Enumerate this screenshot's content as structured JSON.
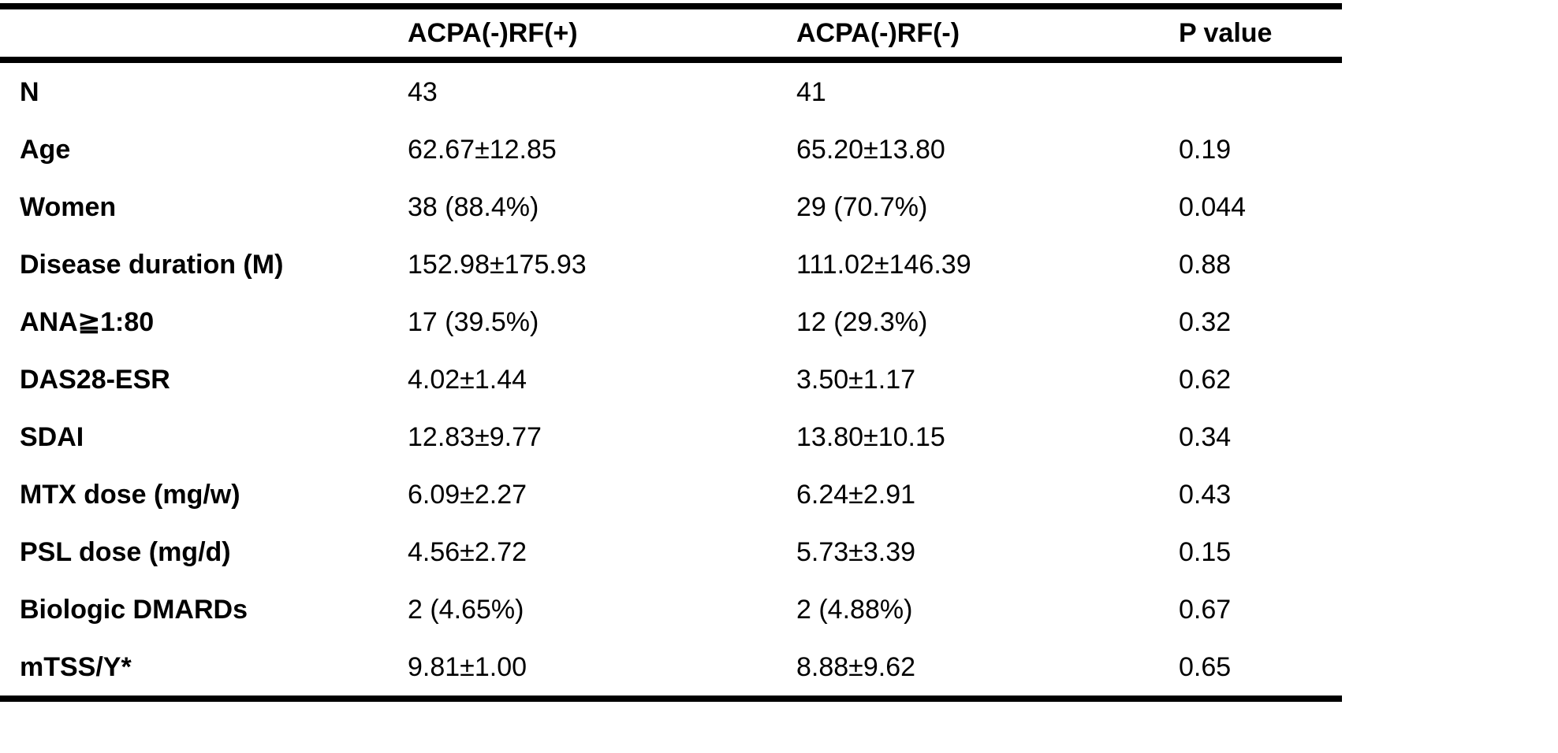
{
  "table": {
    "columns": {
      "label": "",
      "group1": "ACPA(-)RF(+)",
      "group2": "ACPA(-)RF(-)",
      "pvalue": "P value"
    },
    "rows": [
      {
        "label": "N",
        "group1": "43",
        "group2": "41",
        "pvalue": ""
      },
      {
        "label": "Age",
        "group1": "62.67±12.85",
        "group2": "65.20±13.80",
        "pvalue": "0.19"
      },
      {
        "label": "Women",
        "group1": "38 (88.4%)",
        "group2": "29 (70.7%)",
        "pvalue": "0.044"
      },
      {
        "label": "Disease duration (M)",
        "group1": "152.98±175.93",
        "group2": "111.02±146.39",
        "pvalue": "0.88"
      },
      {
        "label": "ANA≧1:80",
        "group1": "17 (39.5%)",
        "group2": "12 (29.3%)",
        "pvalue": "0.32"
      },
      {
        "label": "DAS28-ESR",
        "group1": "4.02±1.44",
        "group2": "3.50±1.17",
        "pvalue": "0.62"
      },
      {
        "label": "SDAI",
        "group1": "12.83±9.77",
        "group2": "13.80±10.15",
        "pvalue": "0.34"
      },
      {
        "label": "MTX dose (mg/w)",
        "group1": "6.09±2.27",
        "group2": "6.24±2.91",
        "pvalue": "0.43"
      },
      {
        "label": "PSL dose (mg/d)",
        "group1": "4.56±2.72",
        "group2": "5.73±3.39",
        "pvalue": "0.15"
      },
      {
        "label": "Biologic DMARDs",
        "group1": "2 (4.65%)",
        "group2": "2 (4.88%)",
        "pvalue": "0.67"
      },
      {
        "label": "mTSS/Y*",
        "group1": "9.81±1.00",
        "group2": "8.88±9.62",
        "pvalue": "0.65"
      }
    ]
  }
}
